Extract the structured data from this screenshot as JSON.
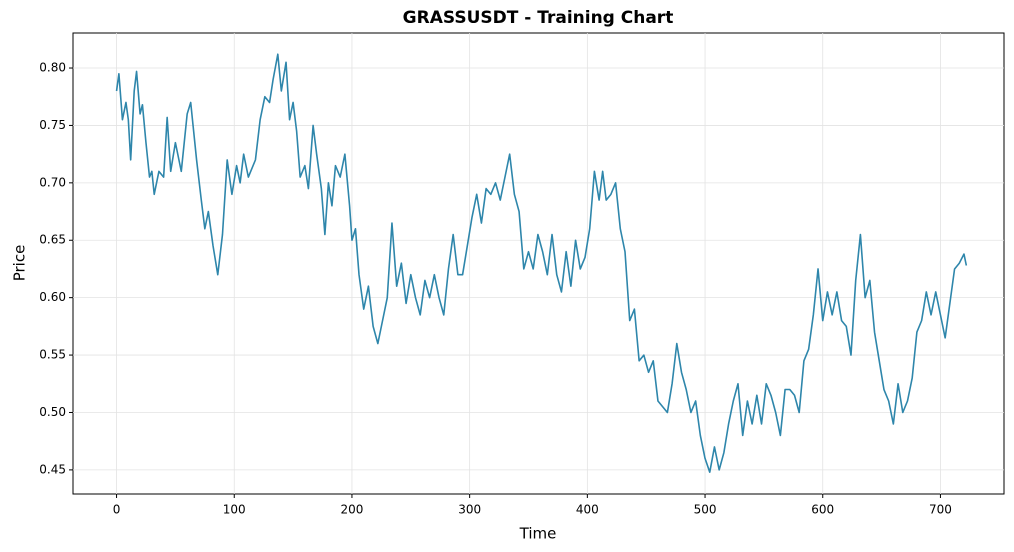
{
  "chart_data": {
    "type": "line",
    "title": "GRASSUSDT - Training Chart",
    "xlabel": "Time",
    "ylabel": "Price",
    "color": "#2e86ab",
    "grid": true,
    "xlim": [
      -37,
      754
    ],
    "ylim": [
      0.429,
      0.8305
    ],
    "xticks": [
      0,
      100,
      200,
      300,
      400,
      500,
      600,
      700
    ],
    "yticks": [
      0.45,
      {
        "value": 0.5,
        "label": "0.50"
      },
      0.55,
      {
        "value": 0.6,
        "label": "0.60"
      },
      0.65,
      {
        "value": 0.7,
        "label": "0.70"
      },
      0.75,
      {
        "value": 0.8,
        "label": "0.80"
      }
    ],
    "x": [
      0,
      2,
      5,
      8,
      10,
      12,
      15,
      17,
      20,
      22,
      25,
      28,
      30,
      32,
      36,
      40,
      43,
      46,
      50,
      55,
      60,
      63,
      68,
      72,
      75,
      78,
      82,
      86,
      90,
      94,
      98,
      102,
      105,
      108,
      112,
      118,
      122,
      126,
      130,
      133,
      137,
      140,
      144,
      147,
      150,
      153,
      156,
      160,
      163,
      167,
      170,
      174,
      177,
      180,
      183,
      186,
      190,
      194,
      198,
      200,
      203,
      206,
      210,
      214,
      218,
      222,
      226,
      230,
      234,
      238,
      242,
      246,
      250,
      254,
      258,
      262,
      266,
      270,
      274,
      278,
      282,
      286,
      290,
      294,
      298,
      302,
      306,
      310,
      314,
      318,
      322,
      326,
      330,
      334,
      338,
      342,
      346,
      350,
      354,
      358,
      362,
      366,
      370,
      374,
      378,
      382,
      386,
      390,
      394,
      398,
      402,
      406,
      410,
      413,
      416,
      420,
      424,
      428,
      432,
      436,
      440,
      444,
      448,
      452,
      456,
      460,
      464,
      468,
      472,
      476,
      480,
      484,
      488,
      492,
      496,
      500,
      504,
      508,
      512,
      516,
      520,
      524,
      528,
      532,
      536,
      540,
      544,
      548,
      552,
      556,
      560,
      564,
      568,
      572,
      576,
      580,
      584,
      588,
      592,
      596,
      600,
      604,
      608,
      612,
      616,
      620,
      624,
      628,
      632,
      636,
      640,
      644,
      648,
      652,
      656,
      660,
      664,
      668,
      672,
      676,
      680,
      684,
      688,
      692,
      696,
      700,
      704,
      708,
      712,
      716,
      720,
      722
    ],
    "values": [
      0.78,
      0.795,
      0.755,
      0.77,
      0.755,
      0.72,
      0.78,
      0.797,
      0.76,
      0.768,
      0.735,
      0.705,
      0.71,
      0.69,
      0.71,
      0.705,
      0.757,
      0.71,
      0.735,
      0.71,
      0.76,
      0.77,
      0.72,
      0.685,
      0.66,
      0.675,
      0.645,
      0.62,
      0.655,
      0.72,
      0.69,
      0.715,
      0.7,
      0.725,
      0.705,
      0.72,
      0.755,
      0.775,
      0.77,
      0.79,
      0.812,
      0.78,
      0.805,
      0.755,
      0.77,
      0.745,
      0.705,
      0.715,
      0.695,
      0.75,
      0.725,
      0.695,
      0.655,
      0.7,
      0.68,
      0.715,
      0.705,
      0.725,
      0.68,
      0.65,
      0.66,
      0.62,
      0.59,
      0.61,
      0.575,
      0.56,
      0.58,
      0.6,
      0.665,
      0.61,
      0.63,
      0.595,
      0.62,
      0.6,
      0.585,
      0.615,
      0.6,
      0.62,
      0.6,
      0.585,
      0.625,
      0.655,
      0.62,
      0.62,
      0.645,
      0.67,
      0.69,
      0.665,
      0.695,
      0.69,
      0.7,
      0.685,
      0.705,
      0.725,
      0.69,
      0.675,
      0.625,
      0.64,
      0.625,
      0.655,
      0.64,
      0.62,
      0.655,
      0.62,
      0.605,
      0.64,
      0.61,
      0.65,
      0.625,
      0.635,
      0.66,
      0.71,
      0.685,
      0.71,
      0.685,
      0.69,
      0.7,
      0.66,
      0.64,
      0.58,
      0.59,
      0.545,
      0.55,
      0.535,
      0.545,
      0.51,
      0.505,
      0.5,
      0.525,
      0.56,
      0.535,
      0.52,
      0.5,
      0.51,
      0.48,
      0.46,
      0.448,
      0.47,
      0.45,
      0.465,
      0.49,
      0.51,
      0.525,
      0.48,
      0.51,
      0.49,
      0.515,
      0.49,
      0.525,
      0.515,
      0.5,
      0.48,
      0.52,
      0.52,
      0.515,
      0.5,
      0.545,
      0.555,
      0.585,
      0.625,
      0.58,
      0.605,
      0.585,
      0.605,
      0.58,
      0.575,
      0.55,
      0.615,
      0.655,
      0.6,
      0.615,
      0.57,
      0.545,
      0.52,
      0.51,
      0.49,
      0.525,
      0.5,
      0.51,
      0.53,
      0.57,
      0.58,
      0.605,
      0.585,
      0.605,
      0.585,
      0.565,
      0.595,
      0.625,
      0.63,
      0.638,
      0.628
    ]
  }
}
